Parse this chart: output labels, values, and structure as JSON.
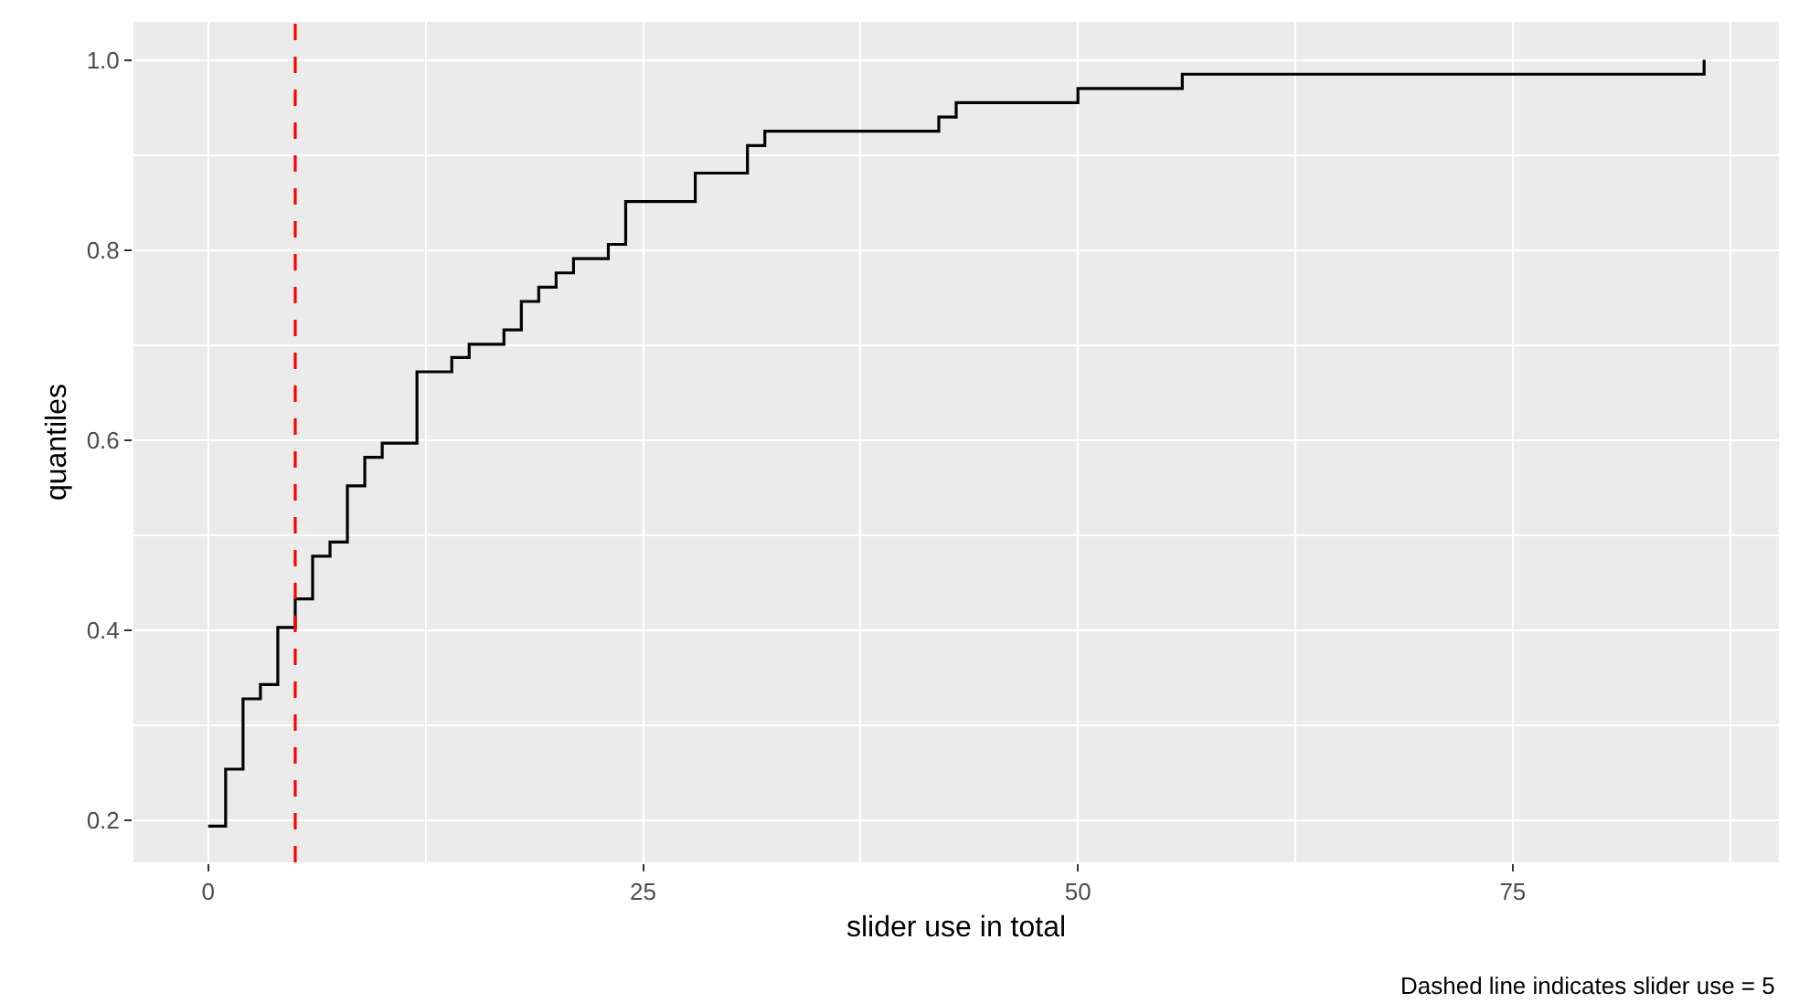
{
  "chart_data": {
    "type": "step",
    "xlabel": "slider use in total",
    "ylabel": "quantiles",
    "x": [
      0,
      1,
      2,
      3,
      4,
      5,
      6,
      7,
      8,
      9,
      10,
      12,
      14,
      15,
      17,
      18,
      19,
      20,
      21,
      23,
      24,
      28,
      31,
      32,
      42,
      43,
      50,
      56,
      86
    ],
    "series": [
      {
        "color": "#000000",
        "values": [
          0.194,
          0.254,
          0.328,
          0.343,
          0.403,
          0.433,
          0.478,
          0.493,
          0.552,
          0.582,
          0.597,
          0.672,
          0.687,
          0.701,
          0.716,
          0.746,
          0.761,
          0.776,
          0.791,
          0.806,
          0.851,
          0.881,
          0.91,
          0.925,
          0.94,
          0.955,
          0.97,
          0.985,
          1.0
        ]
      }
    ],
    "xlim": [
      -4.3,
      90.3
    ],
    "xticks": [
      0,
      25,
      50,
      75
    ],
    "ylim": [
      0.156,
      1.04
    ],
    "yticks": [
      0.2,
      0.4,
      0.6,
      0.8,
      {
        "value": 1,
        "label": "1.0"
      }
    ],
    "grid": true,
    "marker": "none",
    "line_style": "solid",
    "ref_lines": [
      {
        "axis": "x",
        "value": 5,
        "color": "#ff0000",
        "line_style": "dashed"
      }
    ],
    "annotations": [
      "Dashed line indicates slider use = 5"
    ]
  }
}
